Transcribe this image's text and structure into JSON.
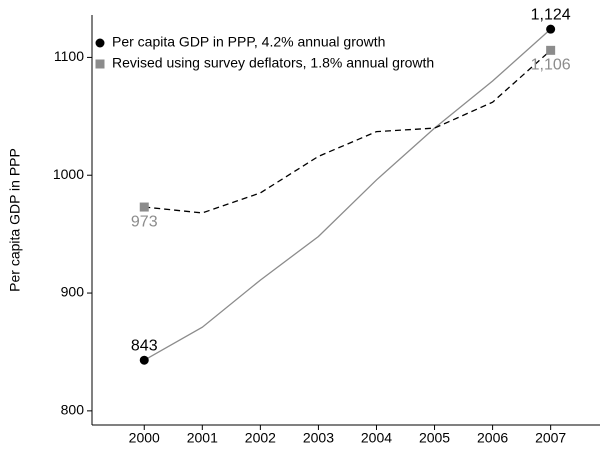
{
  "chart_data": {
    "type": "line",
    "y_label": "Per capita GDP in PPP",
    "x": [
      2000,
      2001,
      2002,
      2003,
      2004,
      2005,
      2006,
      2007
    ],
    "xlim": [
      1999.1,
      2007.85
    ],
    "xticks": [
      2000,
      2001,
      2002,
      2003,
      2004,
      2005,
      2006,
      2007
    ],
    "ylim": [
      788,
      1136
    ],
    "yticks": [
      800,
      900,
      1000,
      1100
    ],
    "grid": false,
    "legend": "upper-left",
    "series": [
      {
        "name": "Per capita GDP in PPP, 4.2% annual growth",
        "color": "#8c8c8c",
        "dash": "solid",
        "marker": "circle",
        "marker_color": "#000000",
        "label_position": "above",
        "values": [
          843,
          871,
          911,
          948,
          996,
          1040,
          1080,
          1124
        ],
        "value_labels": [
          "843",
          null,
          null,
          null,
          null,
          null,
          null,
          "1,124"
        ]
      },
      {
        "name": "Revised using survey deflators, 1.8% annual growth",
        "color": "#000000",
        "dash": "dashed",
        "marker": "square",
        "marker_color": "#8c8c8c",
        "label_position": "below",
        "values": [
          973,
          968,
          985,
          1016,
          1037,
          1040,
          1062,
          1106
        ],
        "value_labels": [
          "973",
          null,
          null,
          null,
          null,
          null,
          null,
          "1,106"
        ]
      }
    ]
  }
}
